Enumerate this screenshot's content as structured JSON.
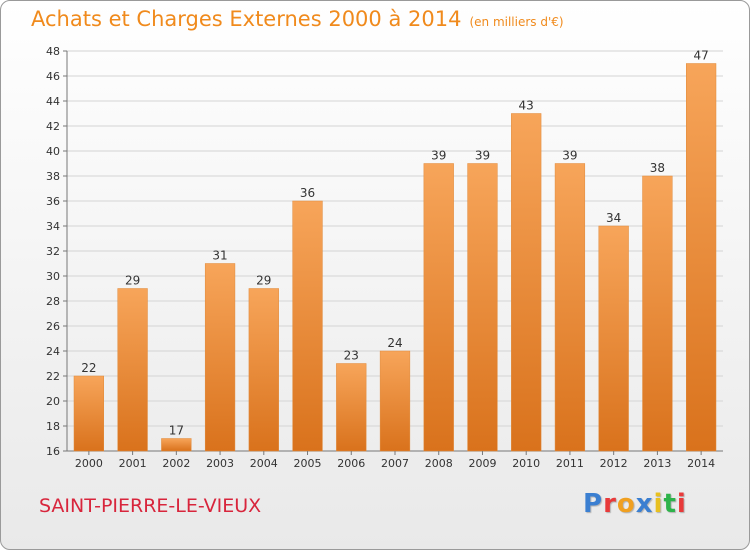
{
  "header": {
    "title": "Achats et Charges Externes 2000 à 2014",
    "subtitle": "(en milliers d'€)"
  },
  "footer": {
    "place": "SAINT-PIERRE-LE-VIEUX",
    "logo_text": "Proxiti",
    "logo_colors": [
      "#3b7fd1",
      "#e83a3a",
      "#f0a020",
      "#3b7fd1",
      "#e8c020",
      "#2db34a",
      "#e83a3a"
    ]
  },
  "colors": {
    "title": "#f08a1c",
    "place": "#d8253c",
    "bar_light": "#f7a55a",
    "bar_dark": "#d9721c"
  },
  "chart_data": {
    "type": "bar",
    "title": "Achats et Charges Externes 2000 à 2014",
    "subtitle": "(en milliers d'€)",
    "categories": [
      "2000",
      "2001",
      "2002",
      "2003",
      "2004",
      "2005",
      "2006",
      "2007",
      "2008",
      "2009",
      "2010",
      "2011",
      "2012",
      "2013",
      "2014"
    ],
    "values": [
      22,
      29,
      17,
      31,
      29,
      36,
      23,
      24,
      39,
      39,
      43,
      39,
      34,
      38,
      47
    ],
    "ylim": [
      16,
      48
    ],
    "yticks": [
      16,
      18,
      20,
      22,
      24,
      26,
      28,
      30,
      32,
      34,
      36,
      38,
      40,
      42,
      44,
      46,
      48
    ],
    "grid": true,
    "data_labels": true
  }
}
